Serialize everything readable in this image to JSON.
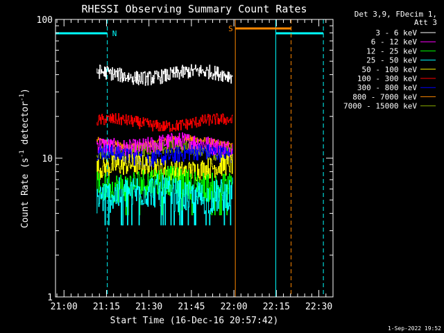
{
  "chart_data": {
    "type": "line",
    "title": "RHESSI Observing Summary Count Rates",
    "xlabel": "Start Time (16-Dec-16 20:57:42)",
    "ylabel_main": "Count Rate (s",
    "ylabel_sup1": "-1",
    "ylabel_mid": " detector",
    "ylabel_sup2": "-1",
    "ylabel_end": ")",
    "yscale": "log",
    "ylim": [
      1,
      100
    ],
    "y_ticks": [
      {
        "value": 1,
        "label": "1"
      },
      {
        "value": 10,
        "label": "10"
      },
      {
        "value": 100,
        "label": "100"
      }
    ],
    "xlim_minutes": [
      -3,
      95
    ],
    "x_ticks": [
      {
        "minutes": 0,
        "label": "21:00"
      },
      {
        "minutes": 15,
        "label": "21:15"
      },
      {
        "minutes": 30,
        "label": "21:30"
      },
      {
        "minutes": 45,
        "label": "21:45"
      },
      {
        "minutes": 60,
        "label": "22:00"
      },
      {
        "minutes": 75,
        "label": "22:15"
      },
      {
        "minutes": 90,
        "label": "22:30"
      }
    ],
    "data_window_minutes": [
      11.5,
      59.5
    ],
    "legend_title_line1": "Det 3,9, FDecim 1,",
    "legend_title_line2": "Att 3",
    "series": [
      {
        "name": "3 - 6 keV",
        "color": "#ffffff",
        "level": 40,
        "noise": 0.12
      },
      {
        "name": "6 - 12 keV",
        "color": "#ff00ff",
        "level": 12.5,
        "noise": 0.15
      },
      {
        "name": "12 - 25 keV",
        "color": "#00ff00",
        "level": 6.5,
        "noise": 0.25
      },
      {
        "name": "25 - 50 keV",
        "color": "#00ffff",
        "level": 5.5,
        "noise": 0.28
      },
      {
        "name": "50 - 100 keV",
        "color": "#ffff00",
        "level": 8.5,
        "noise": 0.18
      },
      {
        "name": "100 - 300 keV",
        "color": "#ff0000",
        "level": 18,
        "noise": 0.1
      },
      {
        "name": "300 - 800 keV",
        "color": "#0000ff",
        "level": 10.5,
        "noise": 0.14
      },
      {
        "name": "800 - 7000 keV",
        "color": "#ff8800",
        "level": 13,
        "noise": 0.06
      },
      {
        "name": "7000 - 15000 keV",
        "color": "#88aa00",
        "level": 11.5,
        "noise": 0.12
      }
    ],
    "events": [
      {
        "type": "night",
        "label": "N",
        "color": "#00ffff",
        "start_min": -3,
        "end_min": 15.3
      },
      {
        "type": "night",
        "label": "",
        "color": "#00ffff",
        "start_min": 74.8,
        "end_min": 91.6
      },
      {
        "type": "saa",
        "label": "S",
        "color": "#ff8800",
        "start_min": 60.5,
        "end_min": 80.2
      }
    ],
    "footer": "1-Sep-2022 19:52"
  }
}
